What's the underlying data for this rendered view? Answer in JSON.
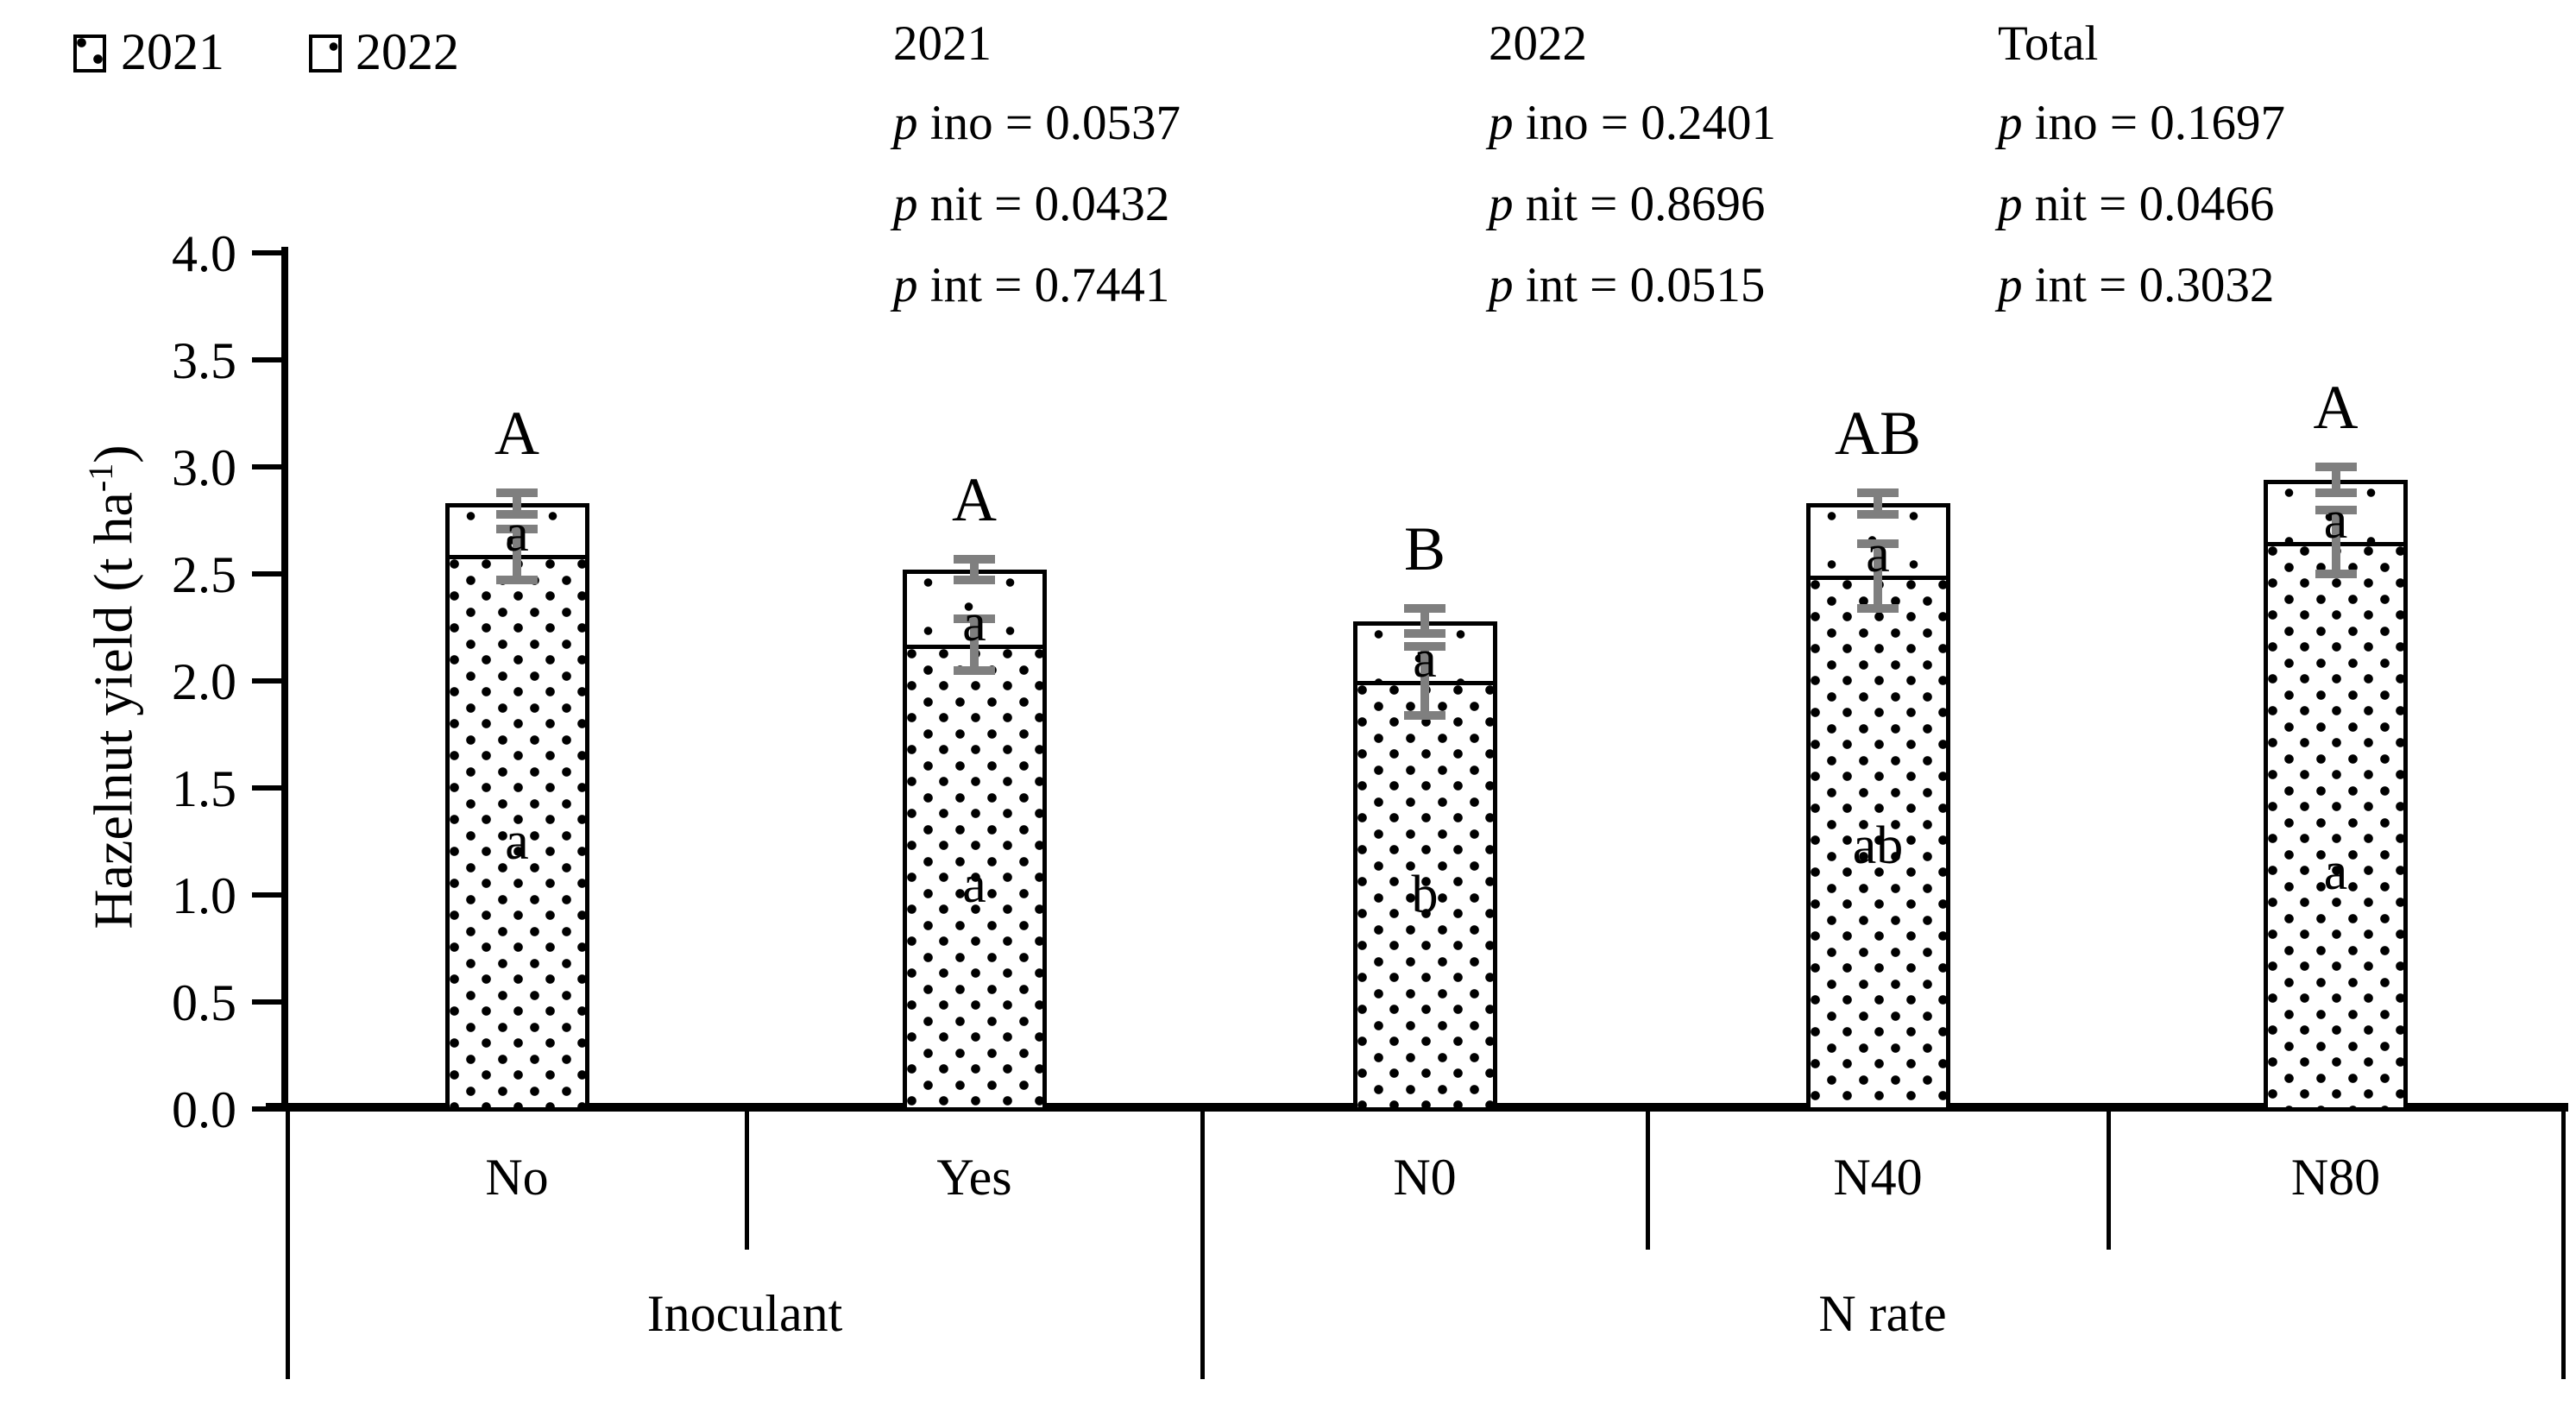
{
  "legend": {
    "items": [
      {
        "label": "2021",
        "pattern": "dense-dots"
      },
      {
        "label": "2022",
        "pattern": "sparse-dots"
      }
    ]
  },
  "stats_blocks": [
    {
      "title": "2021",
      "lines": [
        {
          "p": "p",
          "rest": " ino = 0.0537"
        },
        {
          "p": "p",
          "rest": " nit = 0.0432"
        },
        {
          "p": "p",
          "rest": " int = 0.7441"
        }
      ]
    },
    {
      "title": "2022",
      "lines": [
        {
          "p": "p",
          "rest": " ino = 0.2401"
        },
        {
          "p": "p",
          "rest": " nit = 0.8696"
        },
        {
          "p": "p",
          "rest": " int = 0.0515"
        }
      ]
    },
    {
      "title": "Total",
      "lines": [
        {
          "p": "p",
          "rest": " ino = 0.1697"
        },
        {
          "p": "p",
          "rest": " nit = 0.0466"
        },
        {
          "p": "p",
          "rest": " int = 0.3032"
        }
      ]
    }
  ],
  "chart_data": {
    "type": "bar",
    "stacked": true,
    "ylabel": {
      "base": "Hazelnut yield (t ha",
      "sup": "-1",
      "close": ")"
    },
    "ylim": [
      0,
      4
    ],
    "ytick_step": 0.5,
    "yticks": [
      "4.0",
      "3.5",
      "3.0",
      "2.5",
      "2.0",
      "1.5",
      "1.0",
      "0.5",
      "0.0"
    ],
    "grid": false,
    "legend_position": "top-left",
    "categories": [
      "No",
      "Yes",
      "N0",
      "N40",
      "N80"
    ],
    "groups": [
      {
        "label": "Inoculant",
        "categories": [
          "No",
          "Yes"
        ]
      },
      {
        "label": "N rate",
        "categories": [
          "N0",
          "N40",
          "N80"
        ]
      }
    ],
    "series": [
      {
        "name": "2021",
        "pattern": "dense-dots",
        "values": [
          2.59,
          2.17,
          2.0,
          2.49,
          2.65
        ],
        "errors": [
          0.14,
          0.14,
          0.18,
          0.17,
          0.17
        ],
        "letters": [
          "a",
          "a",
          "b",
          "ab",
          "a"
        ],
        "letter_y": [
          1.25,
          1.05,
          1.0,
          1.23,
          1.11
        ]
      },
      {
        "name": "2022",
        "pattern": "sparse-dots",
        "values": [
          0.24,
          0.35,
          0.28,
          0.34,
          0.29
        ],
        "letters": [
          "a",
          "a",
          "a",
          "a",
          "a"
        ]
      }
    ],
    "totals": [
      2.83,
      2.52,
      2.28,
      2.83,
      2.94
    ],
    "total_errors": [
      0.07,
      0.07,
      0.08,
      0.07,
      0.08
    ],
    "total_letters": [
      "A",
      "A",
      "B",
      "AB",
      "A"
    ],
    "error_bar_color": "#7f7f7f",
    "bar_border_color": "#000000"
  }
}
